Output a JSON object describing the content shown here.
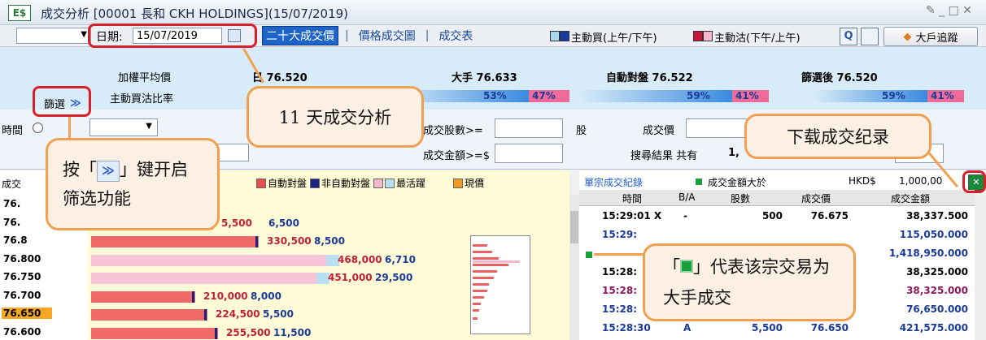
{
  "title_bar": {
    "icon": "E$",
    "title": "成交分析 [00001 長和 CKH HOLDINGS](15/07/2019)"
  },
  "toolbar": {
    "date_label": "日期:",
    "date_value": "15/07/2019",
    "tabs": [
      "二十大成交價",
      "價格成交圖",
      "成交表"
    ],
    "legend": [
      "主動買(上午/下午)",
      "主動沽(下午/上午)"
    ],
    "search_button": "Q",
    "tracker_button": "大戶追蹤"
  },
  "summary": {
    "weighted_avg_label": "加權平均價",
    "all_day": "日 76.520",
    "block": "大手 76.633",
    "auto": "自動對盤 76.522",
    "filtered": "篩選後 76.520",
    "filter_button": "篩選",
    "ratio_label": "主動買沽比率",
    "ratios": [
      [
        "53%",
        "47%"
      ],
      [
        "59%",
        "41%"
      ],
      [
        "59%",
        "41%"
      ]
    ]
  },
  "filter": {
    "time_label": "時間",
    "shares_label": "成交股數>=",
    "shares_unit": "股",
    "price_label": "成交價",
    "amount_label": "成交金額>=$",
    "result_label": "搜尋結果 共有",
    "result_count": "1,"
  },
  "price_panel": {
    "header": "成交",
    "legend": [
      "自動對盤",
      "非自動對盤",
      "最活躍",
      "現價"
    ],
    "rows": [
      {
        "price": "76."
      },
      {
        "price": "76.",
        "volume": "5,500",
        "trades": "6,500"
      },
      {
        "price": "76.8",
        "volume": "330,500",
        "trades": "8,500"
      },
      {
        "price": "76.800",
        "volume": "468,000",
        "trades": "6,710"
      },
      {
        "price": "76.750",
        "volume": "451,000",
        "trades": "29,500"
      },
      {
        "price": "76.700",
        "volume": "210,000",
        "trades": "8,000"
      },
      {
        "price": "76.650",
        "volume": "224,500",
        "trades": "5,500"
      },
      {
        "price": "76.600",
        "volume": "255,500",
        "trades": "11,500"
      }
    ]
  },
  "trades_panel": {
    "title": "單宗成交紀錄",
    "large_label": "成交金額大於",
    "currency": "HKD$",
    "threshold": "1,000,00",
    "columns": [
      "時間",
      "B/A",
      "股數",
      "成交價",
      "成交金額"
    ],
    "rows": [
      {
        "time": "15:29:01 X",
        "side": "-",
        "shares": "500",
        "price": "76.675",
        "amount": "38,337.500",
        "color": "#000000"
      },
      {
        "time": "15:29:",
        "amount": "115,050.000",
        "color": "#1a3a9a"
      },
      {
        "amount": "1,418,950.000",
        "color": "#1a3a9a"
      },
      {
        "time": "15:28:",
        "amount": "38,325.000",
        "color": "#000000"
      },
      {
        "time": "15:28:",
        "amount": "38,325.000",
        "color": "#8b1a5a"
      },
      {
        "time": "15:28:",
        "amount": "76,650.000",
        "color": "#1a3a9a"
      },
      {
        "time": "15:28:30",
        "side": "A",
        "shares": "5,500",
        "price": "76.650",
        "amount": "421,575.000",
        "color": "#1a3a9a"
      }
    ]
  },
  "callouts": {
    "eleven_day": "11 天成交分析",
    "download": "下载成交纪录",
    "filter_before": "按「",
    "filter_after": "」键开启筛选功能",
    "block_before": "「",
    "block_after": "」代表该宗交易为大手成交"
  }
}
